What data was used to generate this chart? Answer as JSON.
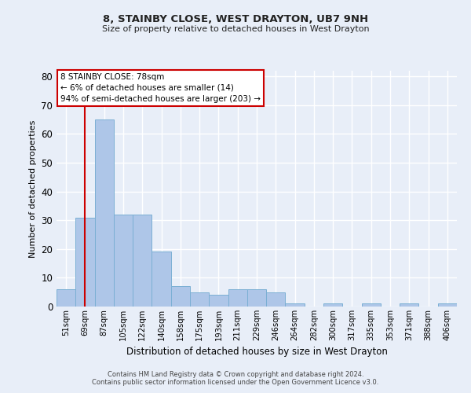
{
  "title1": "8, STAINBY CLOSE, WEST DRAYTON, UB7 9NH",
  "title2": "Size of property relative to detached houses in West Drayton",
  "xlabel": "Distribution of detached houses by size in West Drayton",
  "ylabel": "Number of detached properties",
  "categories": [
    "51sqm",
    "69sqm",
    "87sqm",
    "105sqm",
    "122sqm",
    "140sqm",
    "158sqm",
    "175sqm",
    "193sqm",
    "211sqm",
    "229sqm",
    "246sqm",
    "264sqm",
    "282sqm",
    "300sqm",
    "317sqm",
    "335sqm",
    "353sqm",
    "371sqm",
    "388sqm",
    "406sqm"
  ],
  "values": [
    6,
    31,
    65,
    32,
    32,
    19,
    7,
    5,
    4,
    6,
    6,
    5,
    1,
    0,
    1,
    0,
    1,
    0,
    1,
    0,
    1
  ],
  "bar_color": "#aec6e8",
  "bar_edge_color": "#7bafd4",
  "background_color": "#e8eef8",
  "grid_color": "#ffffff",
  "vline_x": 1.0,
  "vline_color": "#cc0000",
  "annotation_lines": [
    "8 STAINBY CLOSE: 78sqm",
    "← 6% of detached houses are smaller (14)",
    "94% of semi-detached houses are larger (203) →"
  ],
  "annotation_box_color": "#cc0000",
  "ylim": [
    0,
    82
  ],
  "yticks": [
    0,
    10,
    20,
    30,
    40,
    50,
    60,
    70,
    80
  ],
  "footer1": "Contains HM Land Registry data © Crown copyright and database right 2024.",
  "footer2": "Contains public sector information licensed under the Open Government Licence v3.0."
}
